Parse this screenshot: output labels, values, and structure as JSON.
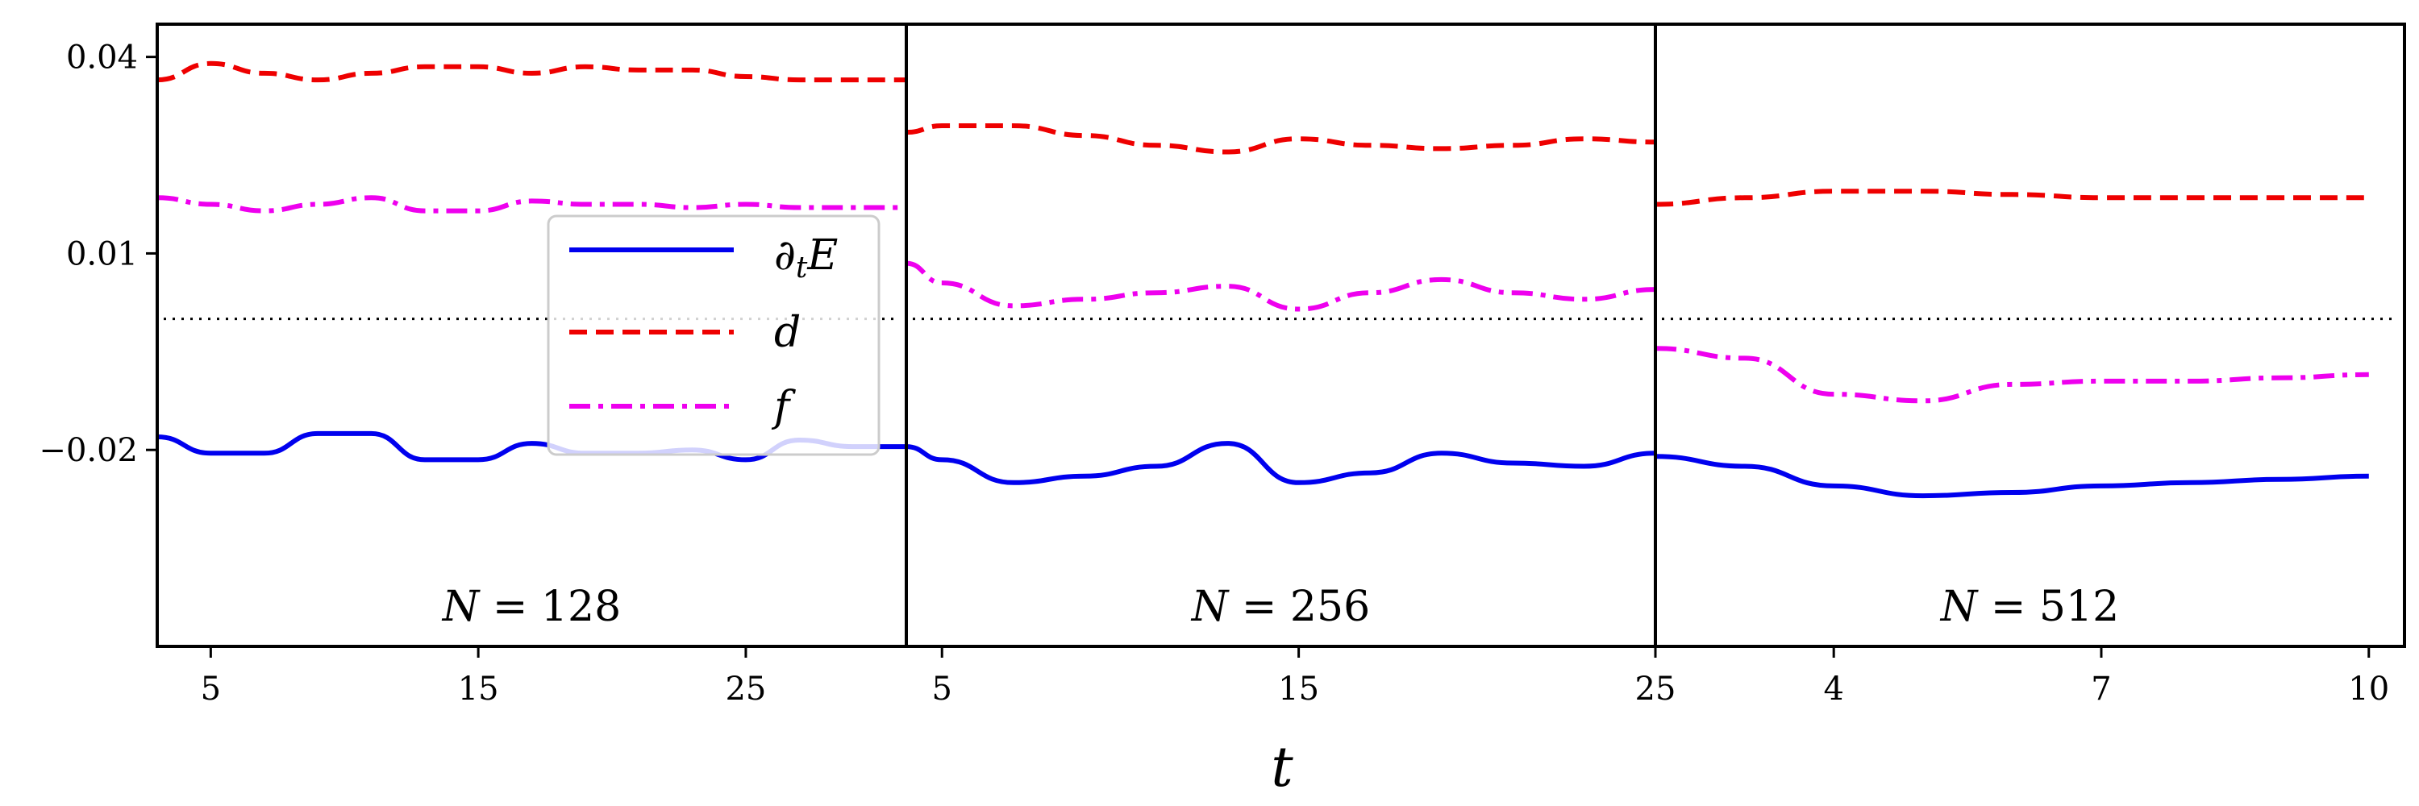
{
  "chart_data": {
    "type": "line",
    "shared_y_axis": true,
    "ylim": [
      -0.05,
      0.045
    ],
    "yticks": [
      0.04,
      0.01,
      -0.02
    ],
    "ytick_labels": [
      "0.04",
      "0.01",
      "−0.02"
    ],
    "xlabel": "t",
    "reference_line": {
      "y": 0.0,
      "style": "dotted",
      "color": "#000000"
    },
    "series_styles": [
      {
        "key": "dtE",
        "name": "∂tE",
        "color": "#0000ee",
        "dash": "solid"
      },
      {
        "key": "d",
        "name": "d",
        "color": "#ee0000",
        "dash": "dashed"
      },
      {
        "key": "f",
        "name": "f",
        "color": "#ee00ee",
        "dash": "dashdot"
      }
    ],
    "legend": {
      "location": "center-right of first panel",
      "entries": [
        "∂tE",
        "d",
        "f"
      ]
    },
    "panels": [
      {
        "label": "N = 128",
        "label_var": "N",
        "label_num": "= 128",
        "xlim": [
          3.0,
          31.0
        ],
        "xticks": [
          5,
          15,
          25
        ],
        "xtick_labels": [
          "5",
          "15",
          "25"
        ],
        "x": [
          3,
          5,
          7,
          9,
          11,
          13,
          15,
          17,
          19,
          21,
          23,
          25,
          27,
          29,
          31
        ],
        "series": {
          "dtE": [
            -0.018,
            -0.0205,
            -0.0205,
            -0.0175,
            -0.0175,
            -0.0215,
            -0.0215,
            -0.019,
            -0.0205,
            -0.0205,
            -0.02,
            -0.0215,
            -0.0185,
            -0.0195,
            -0.0195
          ],
          "d": [
            0.0365,
            0.039,
            0.0375,
            0.0365,
            0.0375,
            0.0385,
            0.0385,
            0.0375,
            0.0385,
            0.038,
            0.038,
            0.037,
            0.0365,
            0.0365,
            0.0365
          ],
          "f": [
            0.0185,
            0.0175,
            0.0165,
            0.0175,
            0.0185,
            0.0165,
            0.0165,
            0.018,
            0.0175,
            0.0175,
            0.017,
            0.0175,
            0.017,
            0.017,
            0.017
          ]
        }
      },
      {
        "label": "N = 256",
        "label_var": "N",
        "label_num": "= 256",
        "xlim": [
          4.0,
          25.0
        ],
        "xticks": [
          5,
          15,
          25
        ],
        "xtick_labels": [
          "5",
          "15",
          "25"
        ],
        "x": [
          4,
          5,
          7,
          9,
          11,
          13,
          15,
          17,
          19,
          21,
          23,
          25
        ],
        "series": {
          "dtE": [
            -0.0195,
            -0.0215,
            -0.025,
            -0.024,
            -0.0225,
            -0.019,
            -0.025,
            -0.0235,
            -0.0205,
            -0.022,
            -0.0225,
            -0.0205
          ],
          "d": [
            0.0285,
            0.0295,
            0.0295,
            0.028,
            0.0265,
            0.0255,
            0.0275,
            0.0265,
            0.026,
            0.0265,
            0.0275,
            0.027
          ],
          "f": [
            0.0085,
            0.0055,
            0.002,
            0.003,
            0.004,
            0.005,
            0.0015,
            0.004,
            0.006,
            0.004,
            0.003,
            0.0045
          ]
        }
      },
      {
        "label": "N = 512",
        "label_var": "N",
        "label_num": "= 512",
        "xlim": [
          2.0,
          10.4
        ],
        "xticks": [
          4,
          7,
          10
        ],
        "xtick_labels": [
          "4",
          "7",
          "10"
        ],
        "x": [
          2,
          3,
          4,
          5,
          6,
          7,
          8,
          9,
          10
        ],
        "series": {
          "dtE": [
            -0.021,
            -0.0225,
            -0.0255,
            -0.027,
            -0.0265,
            -0.0255,
            -0.025,
            -0.0245,
            -0.024
          ],
          "d": [
            0.0175,
            0.0185,
            0.0195,
            0.0195,
            0.019,
            0.0185,
            0.0185,
            0.0185,
            0.0185
          ],
          "f": [
            -0.0045,
            -0.006,
            -0.0115,
            -0.0125,
            -0.01,
            -0.0095,
            -0.0095,
            -0.009,
            -0.0085
          ]
        }
      }
    ]
  }
}
